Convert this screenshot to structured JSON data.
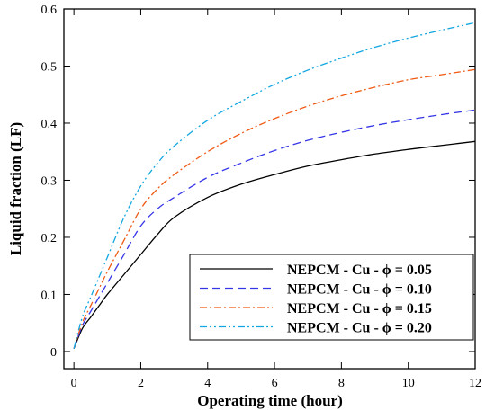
{
  "chart_data": {
    "type": "line",
    "xlabel": "Operating time (hour)",
    "ylabel": "Liquid fraction (LF)",
    "xlim": [
      -0.3,
      12
    ],
    "ylim": [
      -0.03,
      0.6
    ],
    "xticks": [
      0,
      2,
      4,
      6,
      8,
      10,
      12
    ],
    "yticks": [
      0,
      0.1,
      0.2,
      0.3,
      0.4,
      0.5,
      0.6
    ],
    "xtick_labels": [
      "0",
      "2",
      "4",
      "6",
      "8",
      "10",
      "12"
    ],
    "ytick_labels": [
      "0",
      "0.1",
      "0.2",
      "0.3",
      "0.4",
      "0.5",
      "0.6"
    ],
    "grid": false,
    "legend_position": "bottom-right",
    "series": [
      {
        "name": "NEPCM - Cu - ϕ = 0.05",
        "color": "#000000",
        "dash": "solid",
        "x": [
          0,
          0.25,
          0.5,
          0.75,
          1,
          1.5,
          2,
          2.5,
          3,
          4,
          5,
          6,
          7,
          8,
          9,
          10,
          11,
          12
        ],
        "y": [
          0.005,
          0.04,
          0.06,
          0.08,
          0.1,
          0.135,
          0.17,
          0.205,
          0.235,
          0.27,
          0.293,
          0.31,
          0.325,
          0.336,
          0.346,
          0.354,
          0.361,
          0.368
        ]
      },
      {
        "name": "NEPCM - Cu - ϕ = 0.10",
        "color": "#3535e8",
        "dash": "long-dash",
        "x": [
          0,
          0.25,
          0.5,
          0.75,
          1,
          1.5,
          2,
          2.5,
          3,
          4,
          5,
          6,
          7,
          8,
          9,
          10,
          11,
          12
        ],
        "y": [
          0.005,
          0.045,
          0.07,
          0.095,
          0.12,
          0.17,
          0.22,
          0.25,
          0.27,
          0.305,
          0.33,
          0.352,
          0.37,
          0.384,
          0.396,
          0.406,
          0.415,
          0.423
        ]
      },
      {
        "name": "NEPCM - Cu - ϕ = 0.15",
        "color": "#f05a14",
        "dash": "dash-dot",
        "x": [
          0,
          0.25,
          0.5,
          0.75,
          1,
          1.5,
          2,
          2.5,
          3,
          4,
          5,
          6,
          7,
          8,
          9,
          10,
          11,
          12
        ],
        "y": [
          0.005,
          0.05,
          0.08,
          0.11,
          0.14,
          0.195,
          0.25,
          0.285,
          0.31,
          0.35,
          0.382,
          0.408,
          0.43,
          0.448,
          0.463,
          0.476,
          0.485,
          0.494
        ]
      },
      {
        "name": "NEPCM - Cu - ϕ = 0.20",
        "color": "#12a7e0",
        "dash": "dash-dot-dot",
        "x": [
          0,
          0.25,
          0.5,
          0.75,
          1,
          1.5,
          2,
          2.5,
          3,
          4,
          5,
          6,
          7,
          8,
          9,
          10,
          11,
          12
        ],
        "y": [
          0.005,
          0.06,
          0.095,
          0.13,
          0.165,
          0.235,
          0.29,
          0.33,
          0.36,
          0.405,
          0.438,
          0.468,
          0.493,
          0.514,
          0.533,
          0.549,
          0.563,
          0.576
        ]
      }
    ]
  }
}
